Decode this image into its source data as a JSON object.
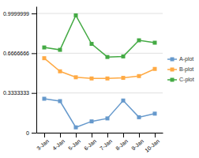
{
  "chart_data": {
    "type": "line",
    "categories": [
      "3-Jan",
      "4-Jan",
      "5-Jan",
      "6-Jan",
      "7-Jan",
      "8-Jan",
      "9-Jan",
      "10-Jan"
    ],
    "series": [
      {
        "name": "A-plot",
        "color": "#6699cc",
        "values": [
          0.285,
          0.265,
          0.045,
          0.095,
          0.12,
          0.27,
          0.13,
          0.16
        ]
      },
      {
        "name": "B-plot",
        "color": "#ffaa44",
        "values": [
          0.625,
          0.515,
          0.465,
          0.455,
          0.455,
          0.46,
          0.475,
          0.535
        ]
      },
      {
        "name": "C-plot",
        "color": "#44aa44",
        "values": [
          0.715,
          0.695,
          0.984,
          0.745,
          0.635,
          0.64,
          0.775,
          0.755
        ]
      }
    ],
    "ylim": [
      0,
      1.06
    ],
    "yticks": [
      0,
      0.3333333,
      0.6666666,
      0.9999999
    ],
    "grid": true,
    "legend": "right",
    "marker": "square",
    "line_style": "solid"
  }
}
